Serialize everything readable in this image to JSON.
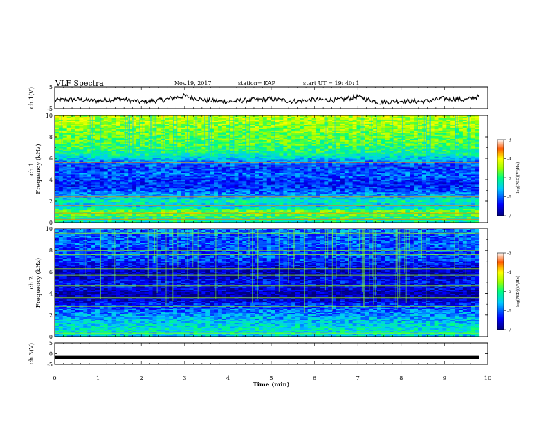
{
  "header": {
    "title": "VLF Spectra",
    "date": "Nov.19, 2017",
    "station": "station= KAP",
    "start": "start  UT =   19: 40: 1"
  },
  "chart_data": [
    {
      "type": "line",
      "panel": "waveform-ch1",
      "ylabel": "ch.1(V)",
      "ylim": [
        -5,
        5
      ],
      "yticks": [
        "5",
        "-5"
      ],
      "xlim": [
        0,
        10
      ],
      "series": [
        {
          "x": [
            0,
            0.5,
            1,
            1.5,
            2,
            2.5,
            3,
            3.5,
            4,
            4.5,
            5,
            5.5,
            6,
            6.5,
            7,
            7.5,
            8,
            8.5,
            9,
            9.5,
            9.8
          ],
          "values": [
            -1.2,
            -0.8,
            -1.5,
            -0.5,
            -2.0,
            -1.0,
            0.8,
            -1.2,
            -1.8,
            -1.0,
            -0.6,
            -1.6,
            -0.9,
            -1.1,
            0.4,
            -2.2,
            -1.4,
            -1.8,
            -0.3,
            -1.0,
            0.7
          ],
          "color": "#000000"
        }
      ]
    },
    {
      "type": "heatmap",
      "panel": "spectrogram-ch1",
      "ylabel": "ch.1\nFrequency  (kHz)",
      "ylim": [
        0,
        10
      ],
      "yticks": [
        "0",
        "2",
        "4",
        "6",
        "8",
        "10"
      ],
      "xlim": [
        0,
        9.8
      ],
      "colorbar": {
        "label": "log(PSD)(V²/Hz)",
        "range": [
          -7,
          -3
        ],
        "ticks": [
          "-3",
          "-4",
          "-5",
          "-6",
          "-7"
        ]
      },
      "level_profile_by_frequency": {
        "freq_khz": [
          0,
          0.5,
          1,
          1.5,
          2,
          2.5,
          3,
          3.5,
          4,
          4.5,
          5,
          5.5,
          6,
          6.5,
          7,
          7.5,
          8,
          8.5,
          9,
          9.5,
          10
        ],
        "log_psd": [
          -5.2,
          -5.0,
          -4.6,
          -5.6,
          -5.2,
          -5.7,
          -6.1,
          -6.3,
          -6.2,
          -6.0,
          -6.2,
          -6.0,
          -5.5,
          -5.1,
          -4.9,
          -4.8,
          -4.7,
          -4.6,
          -4.5,
          -4.4,
          -4.3
        ]
      }
    },
    {
      "type": "heatmap",
      "panel": "spectrogram-ch2",
      "ylabel": "ch.2\nFrequency  (kHz)",
      "ylim": [
        0,
        10
      ],
      "yticks": [
        "0",
        "2",
        "4",
        "6",
        "8",
        "10"
      ],
      "xlim": [
        0,
        9.8
      ],
      "colorbar": {
        "label": "log(PSD)(V²/Hz)",
        "range": [
          -7,
          -3
        ],
        "ticks": [
          "-3",
          "-4",
          "-5",
          "-6",
          "-7"
        ]
      },
      "level_profile_by_frequency": {
        "freq_khz": [
          0,
          0.5,
          1,
          1.5,
          2,
          2.5,
          3,
          3.5,
          4,
          4.5,
          5,
          5.5,
          6,
          6.5,
          7,
          7.5,
          8,
          8.5,
          9,
          9.5,
          10
        ],
        "log_psd": [
          -5.5,
          -5.3,
          -5.4,
          -5.6,
          -5.8,
          -6.0,
          -6.3,
          -6.7,
          -6.8,
          -6.5,
          -6.4,
          -6.6,
          -6.7,
          -6.5,
          -6.2,
          -6.1,
          -6.2,
          -6.0,
          -6.1,
          -6.0,
          -5.9
        ]
      }
    },
    {
      "type": "line",
      "panel": "waveform-ch3",
      "ylabel": "ch.3(V)",
      "ylim": [
        -5,
        5
      ],
      "yticks": [
        "5",
        "0",
        "-5"
      ],
      "xlim": [
        0,
        10
      ],
      "series": [
        {
          "x": [
            0,
            9.8
          ],
          "values": [
            -1.8,
            -1.8
          ],
          "color": "#000000"
        }
      ]
    }
  ],
  "xaxis": {
    "label": "Time  (min)",
    "ticks": [
      "0",
      "1",
      "2",
      "3",
      "4",
      "5",
      "6",
      "7",
      "8",
      "9",
      "10"
    ],
    "lim": [
      0,
      10
    ]
  }
}
